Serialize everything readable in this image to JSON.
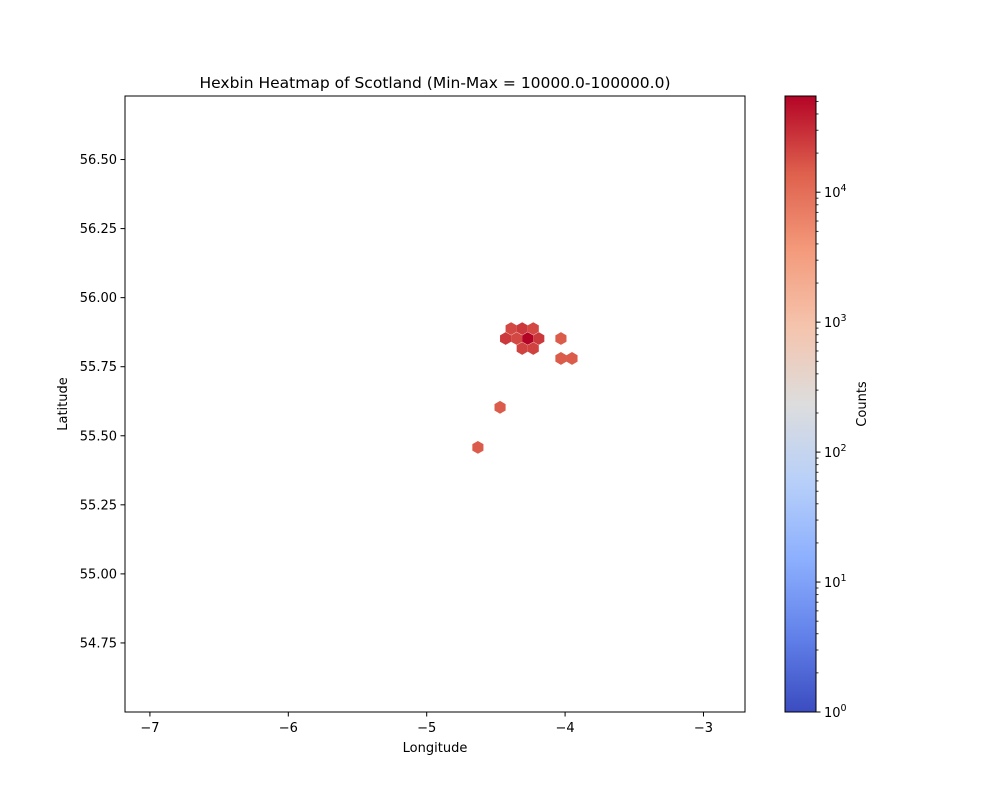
{
  "chart_data": {
    "type": "heatmap",
    "subtype": "hexbin",
    "title": "Hexbin Heatmap of Scotland (Min-Max = 10000.0-100000.0)",
    "xlabel": "Longitude",
    "ylabel": "Latitude",
    "xlim": [
      -7.18,
      -2.7
    ],
    "ylim": [
      54.5,
      56.73
    ],
    "xticks": [
      -7,
      -6,
      -5,
      -4,
      -3
    ],
    "xtick_labels": [
      "−7",
      "−6",
      "−5",
      "−4",
      "−3"
    ],
    "yticks": [
      54.75,
      55.0,
      55.25,
      55.5,
      55.75,
      56.0,
      56.25,
      56.5
    ],
    "ytick_labels": [
      "54.75",
      "55.00",
      "55.25",
      "55.50",
      "55.75",
      "56.00",
      "56.25",
      "56.50"
    ],
    "grid": false,
    "colorbar": {
      "label": "Counts",
      "scale": "log",
      "colormap": "coolwarm",
      "range": [
        1,
        55000
      ],
      "ticks": [
        1,
        10,
        100,
        1000,
        10000
      ],
      "tick_labels": [
        {
          "base": "10",
          "exp": "0"
        },
        {
          "base": "10",
          "exp": "1"
        },
        {
          "base": "10",
          "exp": "2"
        },
        {
          "base": "10",
          "exp": "3"
        },
        {
          "base": "10",
          "exp": "4"
        }
      ]
    },
    "points": [
      {
        "lon": -4.39,
        "lat": 55.888,
        "count": 20000
      },
      {
        "lon": -4.31,
        "lat": 55.888,
        "count": 25000
      },
      {
        "lon": -4.23,
        "lat": 55.888,
        "count": 20000
      },
      {
        "lon": -4.43,
        "lat": 55.852,
        "count": 25000
      },
      {
        "lon": -4.35,
        "lat": 55.852,
        "count": 20000
      },
      {
        "lon": -4.27,
        "lat": 55.852,
        "count": 55000
      },
      {
        "lon": -4.19,
        "lat": 55.852,
        "count": 25000
      },
      {
        "lon": -4.31,
        "lat": 55.816,
        "count": 22000
      },
      {
        "lon": -4.23,
        "lat": 55.816,
        "count": 22000
      },
      {
        "lon": -4.03,
        "lat": 55.852,
        "count": 15000
      },
      {
        "lon": -4.03,
        "lat": 55.78,
        "count": 15000
      },
      {
        "lon": -3.95,
        "lat": 55.78,
        "count": 15000
      },
      {
        "lon": -4.47,
        "lat": 55.603,
        "count": 15000
      },
      {
        "lon": -4.63,
        "lat": 55.458,
        "count": 15000
      }
    ]
  }
}
